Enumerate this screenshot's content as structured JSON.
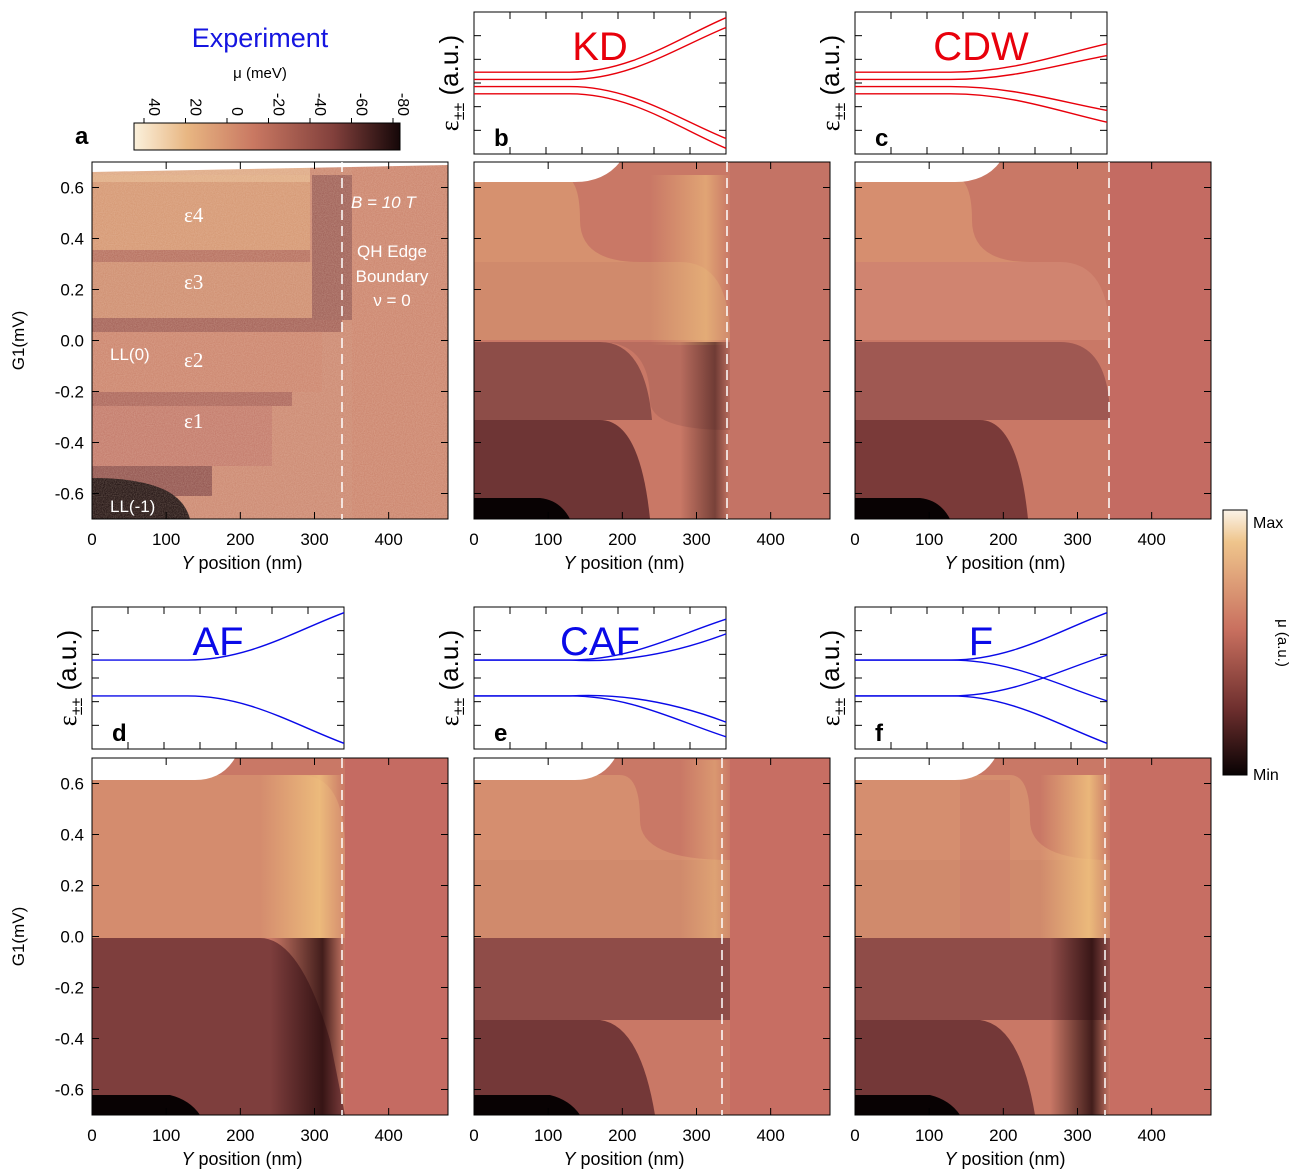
{
  "figure": {
    "experiment_title": "Experiment",
    "colorbar_a": {
      "label": "μ (meV)",
      "ticks": [
        "40",
        "20",
        "0",
        "-20",
        "-40",
        "-60",
        "-80"
      ]
    },
    "colorbar_model": {
      "label": "μ (a.u.)",
      "max_label": "Max",
      "min_label": "Min"
    },
    "axis_labels": {
      "x": "Y position (nm)",
      "y": "G1(mV)",
      "inset_y": "ε±± (a.u.)"
    },
    "panel_letters": [
      "a",
      "b",
      "c",
      "d",
      "e",
      "f"
    ],
    "annotations_a": {
      "field": "B = 10 T",
      "boundary": [
        "QH Edge",
        "Boundary",
        "ν = 0"
      ],
      "ll0": "LL(0)",
      "llm1": "LL(-1)",
      "levels": [
        "ε4",
        "ε3",
        "ε2",
        "ε1"
      ]
    },
    "models": [
      {
        "name": "KD",
        "color": "#e8000b"
      },
      {
        "name": "CDW",
        "color": "#e8000b"
      },
      {
        "name": "AF",
        "color": "#0a0ae8"
      },
      {
        "name": "CAF",
        "color": "#0a0ae8"
      },
      {
        "name": "F",
        "color": "#0a0ae8"
      }
    ]
  },
  "chart_data": [
    {
      "panel": "a",
      "type": "heatmap",
      "title": "Experiment",
      "xlabel": "Y position (nm)",
      "ylabel": "G1(mV)",
      "xlim": [
        0,
        480
      ],
      "ylim": [
        -0.7,
        0.7
      ],
      "xticks": [
        0,
        100,
        200,
        300,
        400
      ],
      "yticks": [
        0.6,
        0.4,
        0.2,
        0.0,
        -0.2,
        -0.4,
        -0.6
      ],
      "colorbar": {
        "label": "μ (meV)",
        "range": [
          40,
          -80
        ]
      },
      "dashed_line_x": 338,
      "bands_y": [
        {
          "label": "ε4",
          "y": 0.49
        },
        {
          "label": "ε3",
          "y": 0.27
        },
        {
          "label": "ε2",
          "y": -0.07
        },
        {
          "label": "ε1",
          "y": -0.3
        }
      ]
    },
    {
      "panel": "b",
      "type": "heatmap",
      "model": "KD",
      "xlabel": "Y position (nm)",
      "xlim": [
        0,
        480
      ],
      "ylim": [
        -0.7,
        0.7
      ],
      "dashed_line_x": 338
    },
    {
      "panel": "c",
      "type": "heatmap",
      "model": "CDW",
      "xlabel": "Y position (nm)",
      "xlim": [
        0,
        480
      ],
      "ylim": [
        -0.7,
        0.7
      ],
      "dashed_line_x": 338
    },
    {
      "panel": "d",
      "type": "heatmap",
      "model": "AF",
      "xlabel": "Y position (nm)",
      "ylabel": "G1(mV)",
      "xlim": [
        0,
        480
      ],
      "ylim": [
        -0.7,
        0.7
      ],
      "dashed_line_x": 338
    },
    {
      "panel": "e",
      "type": "heatmap",
      "model": "CAF",
      "xlabel": "Y position (nm)",
      "xlim": [
        0,
        480
      ],
      "ylim": [
        -0.7,
        0.7
      ],
      "dashed_line_x": 338
    },
    {
      "panel": "f",
      "type": "heatmap",
      "model": "F",
      "xlabel": "Y position (nm)",
      "xlim": [
        0,
        480
      ],
      "ylim": [
        -0.7,
        0.7
      ],
      "dashed_line_x": 338
    },
    {
      "type": "line",
      "insets": {
        "ylabel": "ε±± (a.u.)",
        "x_range_nm": [
          0,
          340
        ],
        "KD": [
          {
            "start": 0.3,
            "end": 1.0
          },
          {
            "start": 0.1,
            "end": 0.85
          },
          {
            "start": -0.1,
            "end": -0.85
          },
          {
            "start": -0.3,
            "end": -1.0
          }
        ],
        "CDW": [
          {
            "start": 0.3,
            "end": 0.6
          },
          {
            "start": 0.1,
            "end": 0.42
          },
          {
            "start": -0.1,
            "end": -0.42
          },
          {
            "start": -0.3,
            "end": -0.6
          }
        ],
        "AF": [
          {
            "start": 0.5,
            "end": 1.0
          },
          {
            "start": -0.5,
            "end": -1.0
          }
        ],
        "CAF": [
          {
            "start": 0.5,
            "end": 0.9
          },
          {
            "start": 0.5,
            "end": 0.4
          },
          {
            "start": -0.5,
            "end": -0.4
          },
          {
            "start": -0.5,
            "end": -0.9
          }
        ],
        "F": [
          {
            "start": 0.5,
            "end": 1.0
          },
          {
            "start": 0.5,
            "end": -0.35
          },
          {
            "start": -0.5,
            "end": 0.35
          },
          {
            "start": -0.5,
            "end": -1.0
          }
        ]
      }
    }
  ]
}
